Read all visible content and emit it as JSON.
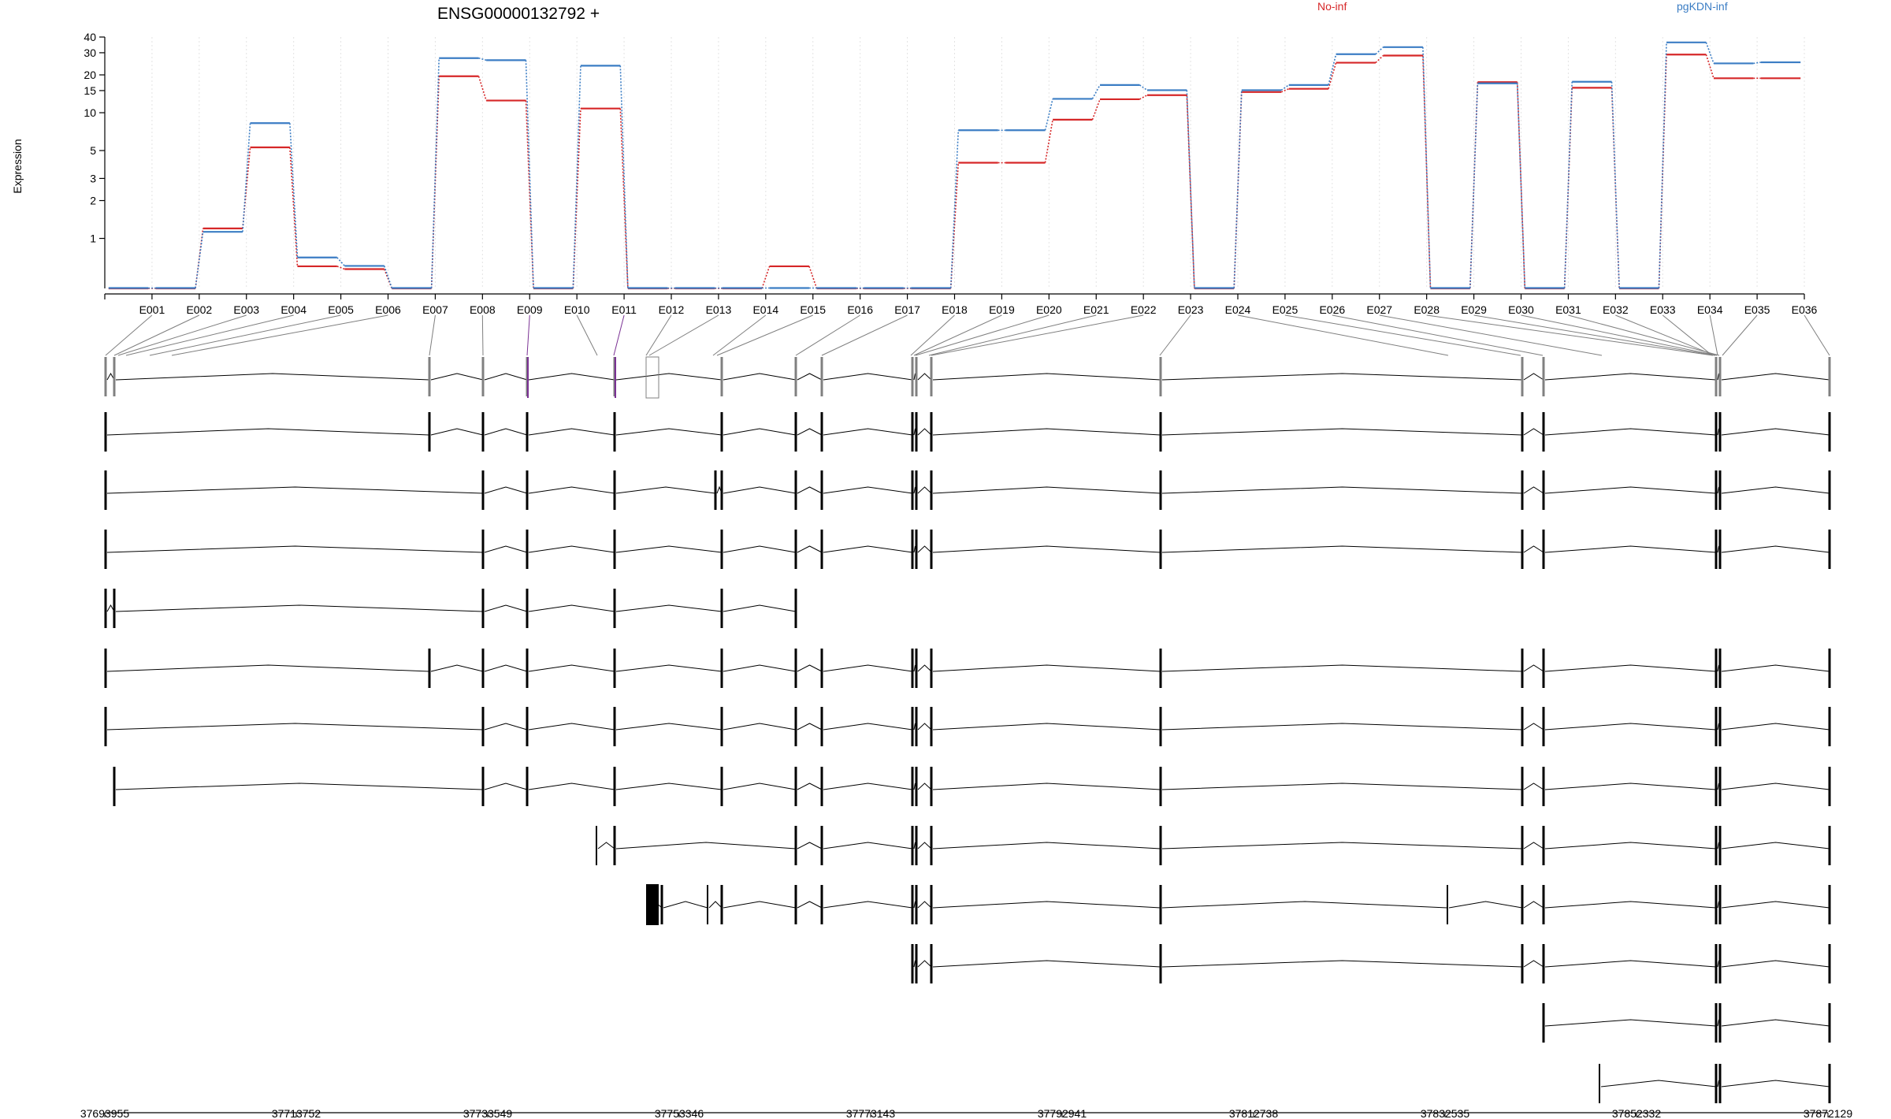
{
  "chart_data": {
    "type": "line",
    "title": "ENSG00000132792 +",
    "ylabel": "Expression",
    "y_scale": "log",
    "ylim": [
      0.4,
      40
    ],
    "y_ticks": [
      1,
      2,
      3,
      5,
      10,
      15,
      20,
      30,
      40
    ],
    "grid": "vertical dotted lines at exon bin boundaries",
    "legend_placement": "top-right",
    "categories": [
      "E001",
      "E002",
      "E003",
      "E004",
      "E005",
      "E006",
      "E007",
      "E008",
      "E009",
      "E010",
      "E011",
      "E012",
      "E013",
      "E014",
      "E015",
      "E016",
      "E017",
      "E018",
      "E019",
      "E020",
      "E021",
      "E022",
      "E023",
      "E024",
      "E025",
      "E026",
      "E027",
      "E028",
      "E029",
      "E030",
      "E031",
      "E032",
      "E033",
      "E034",
      "E035",
      "E036"
    ],
    "series": [
      {
        "name": "No-inf",
        "color": "#d62728",
        "values": [
          0.4,
          0.4,
          1.2,
          5.3,
          0.6,
          0.57,
          0.4,
          19.5,
          12.5,
          0.4,
          10.8,
          0.4,
          0.4,
          0.4,
          0.6,
          0.4,
          0.4,
          0.4,
          4.0,
          4.0,
          8.8,
          12.8,
          13.8,
          0.4,
          14.6,
          15.5,
          25.0,
          28.5,
          0.4,
          17.5,
          0.4,
          15.8,
          0.4,
          29.0,
          18.8,
          18.8
        ]
      },
      {
        "name": "pgKDN-inf",
        "color": "#3b7dc4",
        "values": [
          0.4,
          0.4,
          1.12,
          8.2,
          0.7,
          0.6,
          0.4,
          27.0,
          26.0,
          0.4,
          23.5,
          0.4,
          0.4,
          0.4,
          0.4,
          0.4,
          0.4,
          0.4,
          7.2,
          7.2,
          12.8,
          16.5,
          15.0,
          0.4,
          15.0,
          16.5,
          29.0,
          33.0,
          0.4,
          17.0,
          0.4,
          17.5,
          0.4,
          36.0,
          24.5,
          25.0
        ]
      }
    ],
    "genomic_axis": {
      "ticks": [
        "37693955",
        "37713752",
        "37733549",
        "37753346",
        "37773143",
        "37792941",
        "37812738",
        "37832535",
        "37852332",
        "37872129"
      ],
      "range": [
        37693955,
        37872129
      ]
    },
    "purple_bins": [
      8,
      10
    ]
  }
}
